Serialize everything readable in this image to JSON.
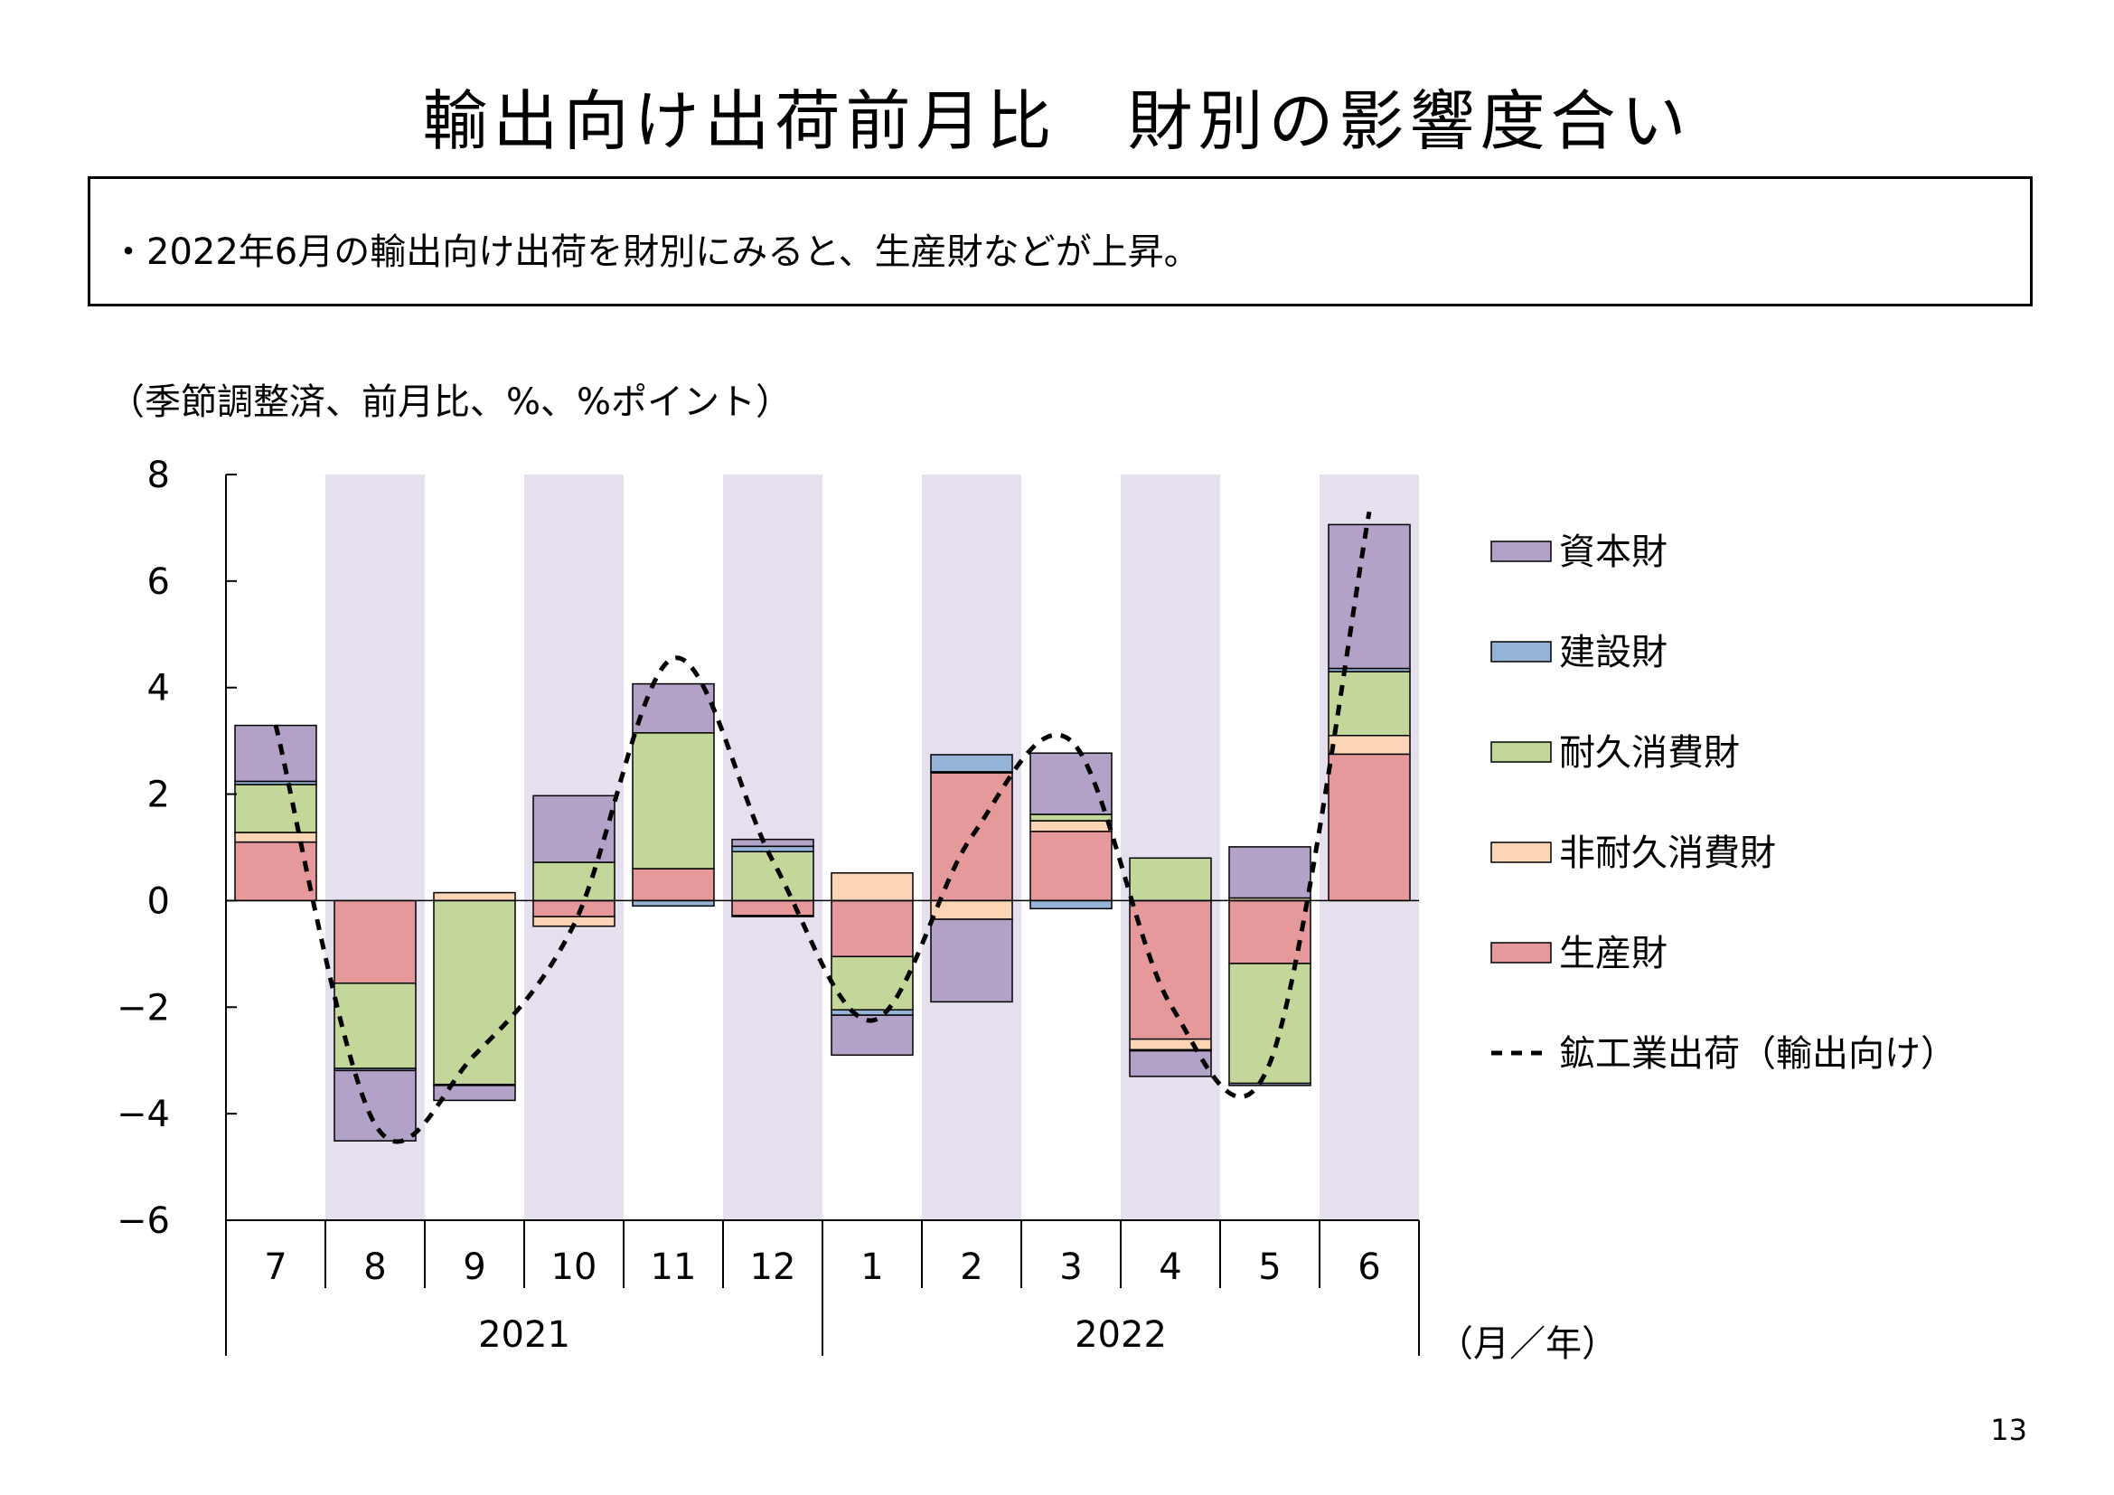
{
  "title": "輸出向け出荷前月比　財別の影響度合い",
  "summary": "・2022年6月の輸出向け出荷を財別にみると、生産財などが上昇。",
  "unit_note": "（季節調整済、前月比、%、%ポイント）",
  "page_number": "13",
  "colors": {
    "shade": "#e6e0ee",
    "capital": "#b3a2c7",
    "construction": "#95b3d7",
    "durable": "#c4d79b",
    "nondurable": "#fcd5b5",
    "production": "#e6999b"
  },
  "chart_data": {
    "type": "bar",
    "stacked": true,
    "categories": [
      "7",
      "8",
      "9",
      "10",
      "11",
      "12",
      "1",
      "2",
      "3",
      "4",
      "5",
      "6"
    ],
    "year_labels": [
      {
        "label": "2021",
        "from": 0,
        "to": 5
      },
      {
        "label": "2022",
        "from": 6,
        "to": 11
      }
    ],
    "x_unit_label": "（月／年）",
    "ylim": [
      -6,
      8
    ],
    "y_ticks": [
      "8",
      "6",
      "4",
      "2",
      "0",
      "−2",
      "−4",
      "−6"
    ],
    "y_tick_values": [
      8,
      6,
      4,
      2,
      0,
      -2,
      -4,
      -6
    ],
    "shaded_categories": [
      1,
      3,
      5,
      7,
      9,
      11
    ],
    "series": [
      {
        "name": "生産財",
        "color": "#e6999b",
        "values": [
          1.1,
          -1.55,
          0.0,
          -0.3,
          0.6,
          -0.28,
          -1.05,
          2.4,
          1.3,
          -2.6,
          -1.18,
          2.75
        ]
      },
      {
        "name": "非耐久消費財",
        "color": "#fcd5b5",
        "values": [
          0.18,
          0.0,
          0.15,
          -0.18,
          0.0,
          -0.02,
          0.52,
          -0.35,
          0.2,
          -0.2,
          0.05,
          0.35
        ]
      },
      {
        "name": "耐久消費財",
        "color": "#c4d79b",
        "values": [
          0.9,
          -1.6,
          -3.45,
          0.72,
          2.55,
          0.92,
          -1.0,
          0.02,
          0.12,
          0.8,
          -2.25,
          1.2
        ]
      },
      {
        "name": "建設財",
        "color": "#95b3d7",
        "values": [
          0.06,
          -0.04,
          -0.02,
          0.0,
          -0.1,
          0.1,
          -0.1,
          0.32,
          -0.15,
          -0.02,
          -0.04,
          0.06
        ]
      },
      {
        "name": "資本財",
        "color": "#b3a2c7",
        "values": [
          1.05,
          -1.32,
          -0.28,
          1.25,
          0.92,
          0.13,
          -0.75,
          -1.55,
          1.15,
          -0.48,
          0.96,
          2.7
        ]
      }
    ],
    "line": {
      "name": "鉱工業出荷（輸出向け）",
      "style": "dashed",
      "values": [
        3.3,
        -4.2,
        -2.9,
        -0.45,
        4.55,
        0.75,
        -2.25,
        1.2,
        3.0,
        -1.95,
        -3.05,
        7.3
      ]
    },
    "legend": [
      {
        "name": "資本財",
        "kind": "box",
        "color": "#b3a2c7"
      },
      {
        "name": "建設財",
        "kind": "box",
        "color": "#95b3d7"
      },
      {
        "name": "耐久消費財",
        "kind": "box",
        "color": "#c4d79b"
      },
      {
        "name": "非耐久消費財",
        "kind": "box",
        "color": "#fcd5b5"
      },
      {
        "name": "生産財",
        "kind": "box",
        "color": "#e6999b"
      },
      {
        "name": "鉱工業出荷（輸出向け）",
        "kind": "dashed-line",
        "color": "#000000"
      }
    ],
    "legend_position": "right"
  }
}
